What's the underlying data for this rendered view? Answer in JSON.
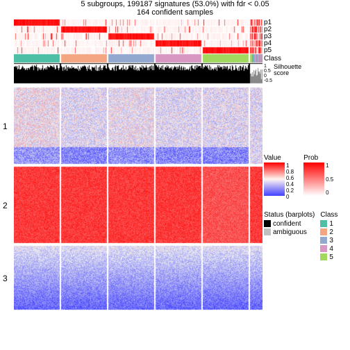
{
  "title_line1": "5 subgroups, 199187 signatures (53.0%) with fdr < 0.05",
  "title_line2": "164 confident samples",
  "p_labels": [
    "p1",
    "p2",
    "p3",
    "p4",
    "p5"
  ],
  "class_label": "Class",
  "silhouette_label": "Silhouette\nscore",
  "silhouette_ticks": [
    "1",
    "0.5",
    "0",
    "-0.5"
  ],
  "row_cluster_labels": [
    "1",
    "2",
    "3"
  ],
  "layout": {
    "panel_widths": [
      66,
      66,
      66,
      66,
      66
    ],
    "summary_width": 20,
    "panel_gap": 2,
    "p_track_h": 10,
    "class_track_h": 14,
    "sil_track_h": 28,
    "heatmap_heights": [
      110,
      110,
      92
    ]
  },
  "class_colors": [
    "#4dbfa5",
    "#f4a582",
    "#92a8cf",
    "#d896c3",
    "#a1d95f"
  ],
  "prob_colors": {
    "high": "#ff0000",
    "mid": "#ffcccc",
    "low": "#ffffff"
  },
  "summary_color": "#b0b0b0",
  "silhouette": {
    "bar_color": "#000000",
    "range": [
      -0.5,
      1
    ]
  },
  "status": {
    "confident_color": "#000000",
    "ambiguous_color": "#c0c0c0"
  },
  "value_scale": {
    "min": 0,
    "max": 1,
    "colors": [
      "#4040ff",
      "#8080f0",
      "#e8e8f0",
      "#ffd0c0",
      "#ff6040",
      "#ff0000"
    ]
  },
  "legends": {
    "value": {
      "title": "Value",
      "ticks": [
        "1",
        "0.8",
        "0.6",
        "0.4",
        "0.2",
        "0"
      ]
    },
    "prob": {
      "title": "Prob",
      "ticks": [
        "1",
        "0.5",
        "0"
      ]
    },
    "status": {
      "title": "Status (barplots)",
      "items": [
        {
          "label": "confident",
          "color": "#000000"
        },
        {
          "label": "ambiguous",
          "color": "#c0c0c0"
        }
      ]
    },
    "class": {
      "title": "Class",
      "items": [
        {
          "label": "1",
          "color": "#4dbfa5"
        },
        {
          "label": "2",
          "color": "#f4a582"
        },
        {
          "label": "3",
          "color": "#92a8cf"
        },
        {
          "label": "4",
          "color": "#d896c3"
        },
        {
          "label": "5",
          "color": "#a1d95f"
        }
      ]
    }
  },
  "heatmap_row_patterns": {
    "cluster1": {
      "base": 0.45,
      "var": 0.35,
      "bias_per_panel": [
        0.05,
        0.0,
        0.03,
        0.0,
        0.0
      ]
    },
    "cluster2": {
      "base": 0.88,
      "var": 0.15,
      "bias_per_panel": [
        0.0,
        0.0,
        0.0,
        0.0,
        -0.05
      ]
    },
    "cluster3": {
      "base": 0.2,
      "var": 0.25,
      "bias_per_panel": [
        0.0,
        0.0,
        0.0,
        0.0,
        0.0
      ],
      "gradient": true
    }
  }
}
